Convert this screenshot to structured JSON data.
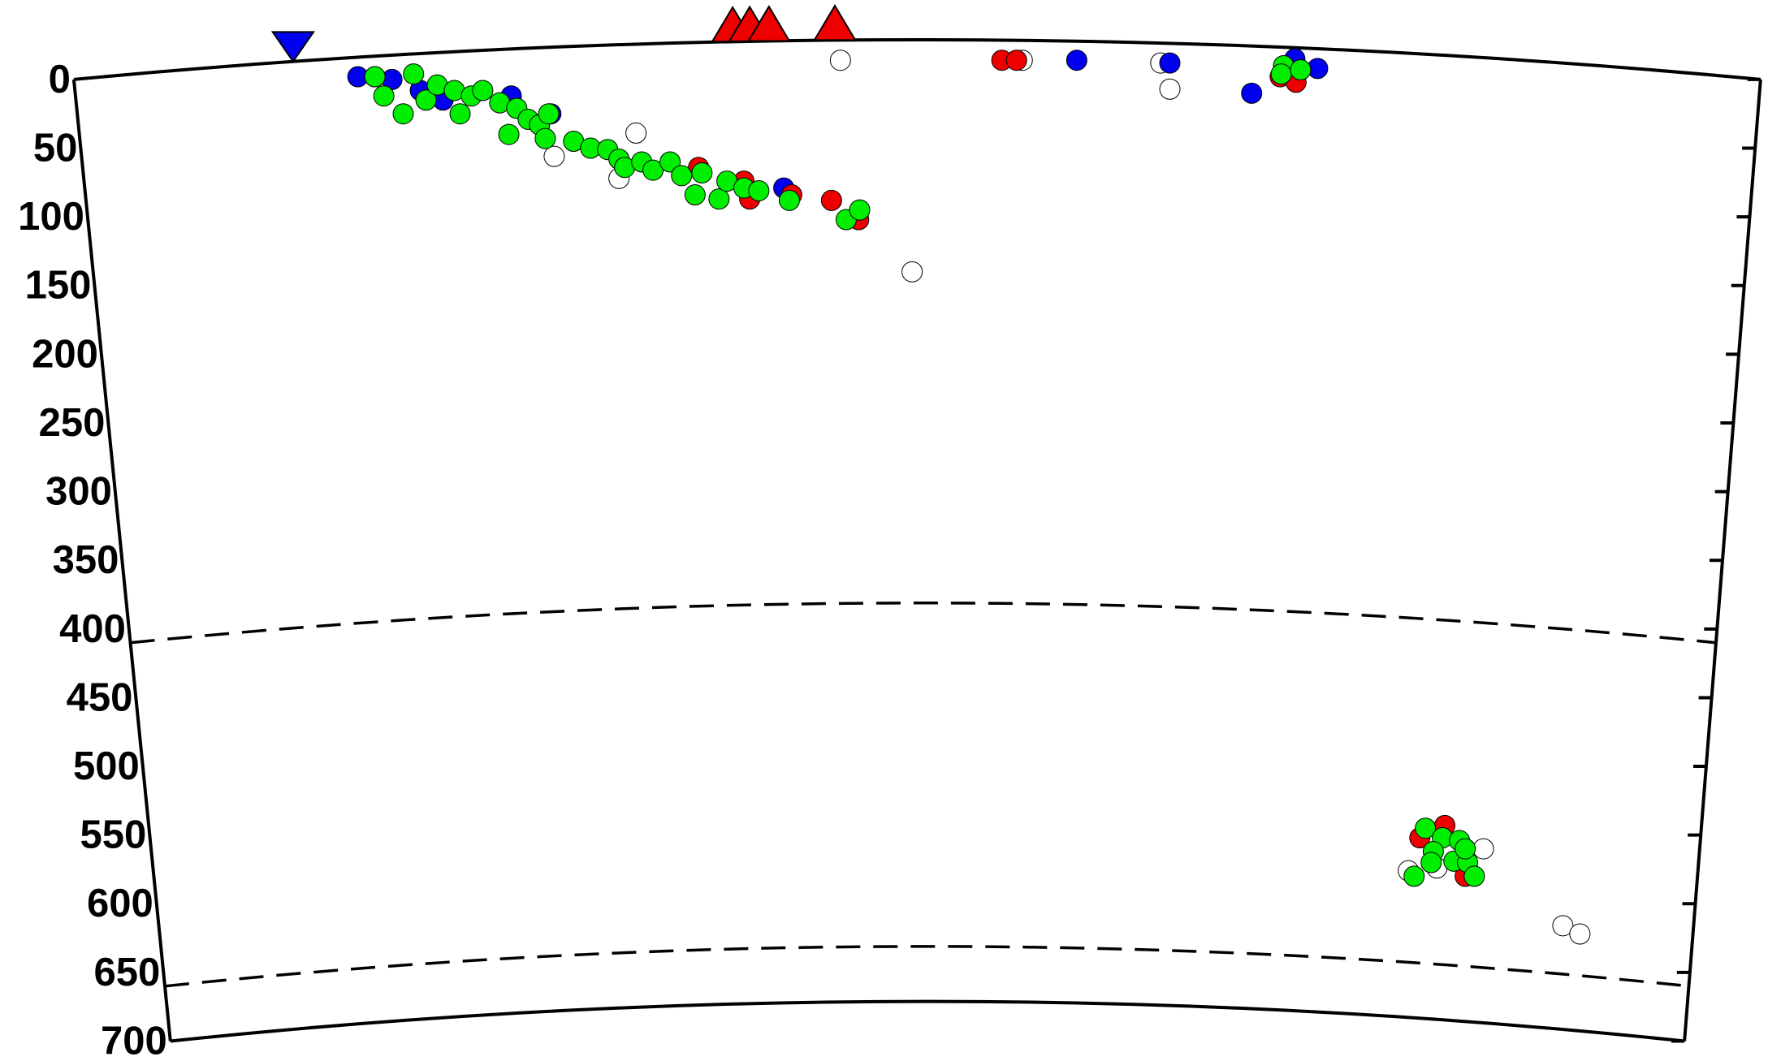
{
  "chart_data": {
    "type": "scatter",
    "ylim": [
      0,
      700
    ],
    "yticks": [
      0,
      50,
      100,
      150,
      200,
      250,
      300,
      350,
      400,
      450,
      500,
      550,
      600,
      650,
      700
    ],
    "xlim": [
      0,
      1000
    ],
    "discontinuities": [
      410,
      660
    ],
    "trench_x": [
      130.0
    ],
    "volcanoes_x": [
      390.6,
      400.7,
      412.1,
      451.2
    ],
    "series": [
      {
        "color": "#ffffff",
        "x": [
          454.5,
          333.3,
          284.8,
          323.2,
          497.0,
          562.3,
          644.4,
          649.8,
          835.7,
          791.2,
          808.1,
          882.8,
          892.9
        ],
        "values": [
          -14,
          39,
          56,
          72,
          140,
          -14,
          -12,
          7,
          560,
          576,
          574,
          616,
          622
        ]
      },
      {
        "color": "#0000ee",
        "x": [
          168.4,
          178.5,
          188.6,
          205.4,
          218.9,
          259.3,
          282.8,
          420.9,
          594.6,
          649.8,
          698.3,
          737.4,
          723.9
        ],
        "values": [
          -2,
          -2,
          0,
          8,
          15,
          12,
          25,
          79,
          -14,
          -12,
          10,
          -8,
          -15
        ]
      },
      {
        "color": "#ee0000",
        "x": [
          370.4,
          397.3,
          400.7,
          425.6,
          449.2,
          465.3,
          550.2,
          558.9,
          715.2,
          724.6,
          812.8,
          798.0,
          824.9
        ],
        "values": [
          64,
          74,
          87,
          84,
          88,
          102,
          -14,
          -14,
          -2,
          2,
          543,
          552,
          580
        ]
      },
      {
        "color": "#00ee00",
        "x": [
          178.5,
          183.8,
          195.3,
          201.4,
          208.8,
          215.5,
          225.6,
          229.0,
          235.7,
          242.4,
          252.5,
          257.9,
          262.6,
          269.4,
          276.1,
          279.5,
          281.5,
          296.3,
          306.4,
          316.5,
          323.2,
          326.6,
          336.7,
          343.4,
          353.5,
          360.3,
          368.3,
          372.4,
          382.5,
          387.2,
          397.3,
          406.1,
          424.2,
          457.9,
          465.9,
          717.2,
          715.8,
          727.3,
          801.3,
          811.4,
          821.5,
          806.0,
          804.7,
          818.2,
          826.3,
          830.3,
          794.6,
          824.9
        ],
        "values": [
          -2,
          12,
          25,
          -4,
          15,
          4,
          8,
          25,
          12,
          8,
          17,
          40,
          21,
          29,
          33,
          43,
          25,
          45,
          50,
          51,
          58,
          64,
          60,
          66,
          60,
          70,
          84,
          68,
          87,
          74,
          79,
          81,
          88,
          102,
          95,
          -10,
          -4,
          -7,
          545,
          552,
          554,
          562,
          570,
          569,
          570,
          580,
          580,
          560
        ]
      }
    ]
  }
}
